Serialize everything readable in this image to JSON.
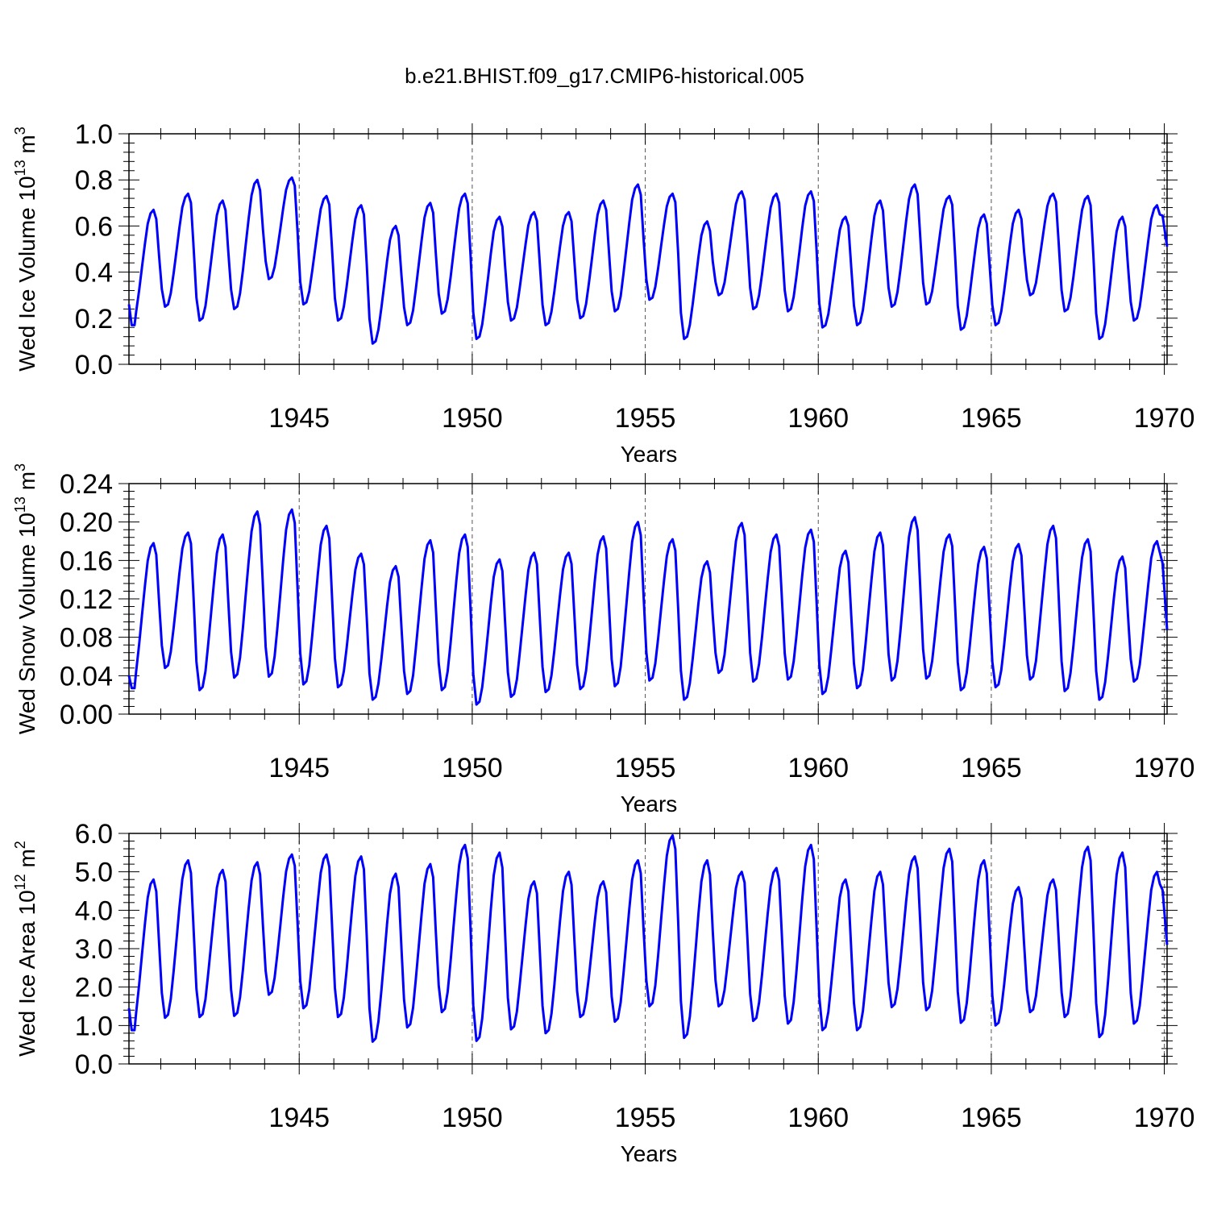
{
  "title": "b.e21.BHIST.f09_g17.CMIP6-historical.005",
  "chart_data": [
    {
      "type": "line",
      "ylabel": "Wed Ice Volume 10",
      "ylabel_exp": "13",
      "ylabel_unit": " m",
      "ylabel_unit_exp": "3",
      "xlabel": "Years",
      "xlim": [
        1940.08,
        1970.08
      ],
      "ylim": [
        0.0,
        1.0
      ],
      "yticks": [
        0.0,
        0.2,
        0.4,
        0.6,
        0.8,
        1.0
      ],
      "ytick_labels": [
        "0.0",
        "0.2",
        "0.4",
        "0.6",
        "0.8",
        "1.0"
      ],
      "xticks": [
        1945,
        1950,
        1955,
        1960,
        1965,
        1970
      ],
      "xtick_labels": [
        "1945",
        "1950",
        "1955",
        "1960",
        "1965",
        "1970"
      ],
      "series_color": "#0000ff",
      "min_pre": [
        0.26
      ],
      "max": [
        0.67,
        0.74,
        0.71,
        0.8,
        0.81,
        0.73,
        0.69,
        0.6,
        0.7,
        0.74,
        0.64,
        0.66,
        0.66,
        0.71,
        0.78,
        0.74,
        0.62,
        0.75,
        0.74,
        0.75,
        0.64,
        0.71,
        0.78,
        0.73,
        0.65,
        0.67,
        0.74,
        0.73,
        0.64,
        0.69
      ],
      "min": [
        0.17,
        0.25,
        0.19,
        0.24,
        0.37,
        0.26,
        0.19,
        0.09,
        0.17,
        0.22,
        0.11,
        0.19,
        0.17,
        0.2,
        0.23,
        0.28,
        0.11,
        0.3,
        0.24,
        0.23,
        0.16,
        0.17,
        0.25,
        0.26,
        0.15,
        0.17,
        0.3,
        0.23,
        0.11,
        0.19
      ],
      "end_value": 0.51
    },
    {
      "type": "line",
      "ylabel": "Wed Snow Volume 10",
      "ylabel_exp": "13",
      "ylabel_unit": " m",
      "ylabel_unit_exp": "3",
      "xlabel": "Years",
      "xlim": [
        1940.08,
        1970.08
      ],
      "ylim": [
        0.0,
        0.24
      ],
      "yticks": [
        0.0,
        0.04,
        0.08,
        0.12,
        0.16,
        0.2,
        0.24
      ],
      "ytick_labels": [
        "0.00",
        "0.04",
        "0.08",
        "0.12",
        "0.16",
        "0.20",
        "0.24"
      ],
      "xticks": [
        1945,
        1950,
        1955,
        1960,
        1965,
        1970
      ],
      "xtick_labels": [
        "1945",
        "1950",
        "1955",
        "1960",
        "1965",
        "1970"
      ],
      "series_color": "#0000ff",
      "min_pre": [
        0.04
      ],
      "max": [
        0.178,
        0.189,
        0.187,
        0.211,
        0.213,
        0.196,
        0.167,
        0.154,
        0.181,
        0.187,
        0.161,
        0.168,
        0.168,
        0.185,
        0.2,
        0.182,
        0.159,
        0.199,
        0.187,
        0.192,
        0.17,
        0.189,
        0.205,
        0.187,
        0.174,
        0.177,
        0.196,
        0.182,
        0.164,
        0.18
      ],
      "min": [
        0.027,
        0.048,
        0.025,
        0.038,
        0.039,
        0.031,
        0.028,
        0.015,
        0.021,
        0.025,
        0.01,
        0.018,
        0.023,
        0.026,
        0.029,
        0.035,
        0.015,
        0.043,
        0.034,
        0.036,
        0.021,
        0.027,
        0.035,
        0.037,
        0.025,
        0.028,
        0.036,
        0.024,
        0.015,
        0.034
      ],
      "end_value": 0.088
    },
    {
      "type": "line",
      "ylabel": "Wed Ice Area 10",
      "ylabel_exp": "12",
      "ylabel_unit": " m",
      "ylabel_unit_exp": "2",
      "xlabel": "Years",
      "xlim": [
        1940.08,
        1970.08
      ],
      "ylim": [
        0.0,
        6.0
      ],
      "yticks": [
        0.0,
        1.0,
        2.0,
        3.0,
        4.0,
        5.0,
        6.0
      ],
      "ytick_labels": [
        "0.0",
        "1.0",
        "2.0",
        "3.0",
        "4.0",
        "5.0",
        "6.0"
      ],
      "xticks": [
        1945,
        1950,
        1955,
        1960,
        1965,
        1970
      ],
      "xtick_labels": [
        "1945",
        "1950",
        "1955",
        "1960",
        "1965",
        "1970"
      ],
      "series_color": "#0000ff",
      "min_pre": [
        1.45
      ],
      "max": [
        4.8,
        5.3,
        5.05,
        5.25,
        5.45,
        5.45,
        5.4,
        4.95,
        5.2,
        5.7,
        5.5,
        4.75,
        5.0,
        4.75,
        5.3,
        5.95,
        5.3,
        5.0,
        5.1,
        5.7,
        4.8,
        5.0,
        5.4,
        5.6,
        5.3,
        4.6,
        4.8,
        5.65,
        5.5,
        5.0
      ],
      "min": [
        0.88,
        1.2,
        1.22,
        1.25,
        1.8,
        1.45,
        1.22,
        0.58,
        0.95,
        1.35,
        0.6,
        0.9,
        0.8,
        1.22,
        1.1,
        1.5,
        0.68,
        1.5,
        1.12,
        1.05,
        0.88,
        0.88,
        1.48,
        1.4,
        1.07,
        1.0,
        1.35,
        1.22,
        0.7,
        1.05
      ],
      "end_value": 3.1
    }
  ]
}
